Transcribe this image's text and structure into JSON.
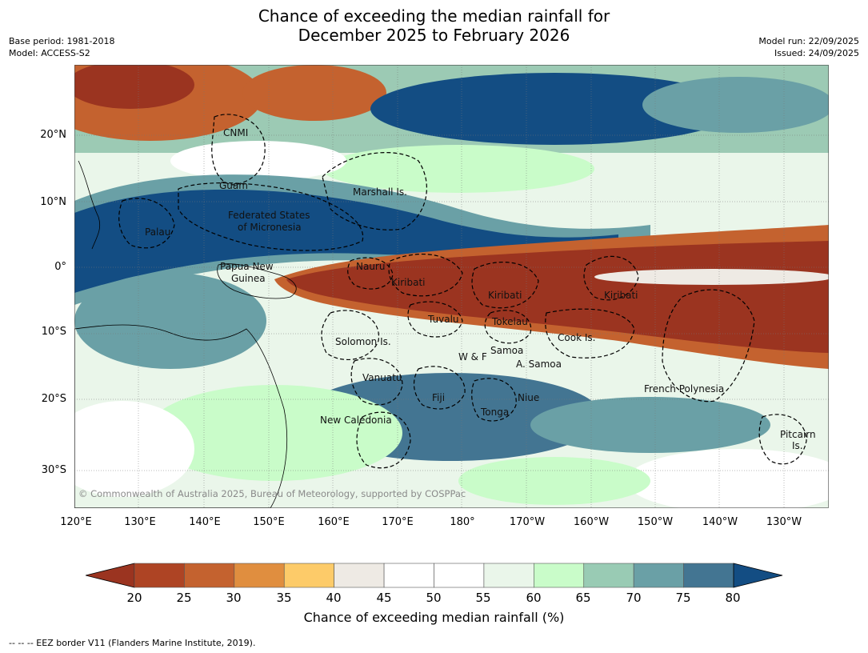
{
  "title_line1": "Chance of exceeding the median rainfall for",
  "title_line2": "December 2025 to February 2026",
  "meta_left": [
    "Base period: 1981-2018",
    "Model: ACCESS-S2"
  ],
  "meta_right": [
    "Model run: 22/09/2025",
    "Issued: 24/09/2025"
  ],
  "lat_labels": [
    "20°N",
    "10°N",
    "0°",
    "10°S",
    "20°S",
    "30°S"
  ],
  "lon_labels": [
    "120°E",
    "130°E",
    "140°E",
    "150°E",
    "160°E",
    "170°E",
    "180°",
    "170°W",
    "160°W",
    "150°W",
    "140°W",
    "130°W"
  ],
  "region_labels": [
    "CNMI",
    "Guam",
    "Marshall Is.",
    "Federated States",
    "of Micronesia",
    "Palau",
    "Papua New",
    "Guinea",
    "Nauru",
    "Kiribati",
    "Kiribati",
    "Kiribati",
    "Tuvalu",
    "Tokelau",
    "Cook Is.",
    "Solomon Is.",
    "W & F",
    "Samoa",
    "A. Samoa",
    "Vanuatu",
    "Fiji",
    "Niue",
    "French Polynesia",
    "Tonga",
    "New Caledonia",
    "Pitcairn",
    "Is."
  ],
  "copyright": "© Commonwealth of Australia 2025, Bureau of Meteorology, supported by COSPPac",
  "colorbar": {
    "ticks": [
      "20",
      "25",
      "30",
      "35",
      "40",
      "45",
      "50",
      "55",
      "60",
      "65",
      "70",
      "75",
      "80"
    ],
    "colors": [
      "#9b3420",
      "#ae4424",
      "#c4622f",
      "#e08e3f",
      "#fdcb69",
      "#eeeae4",
      "#ffffff",
      "#ffffff",
      "#eaf6ea",
      "#c9fcc9",
      "#99cbb4",
      "#6aa0a6",
      "#437592",
      "#134d83"
    ],
    "label": "Chance of exceeding median rainfall (%)"
  },
  "footnote": "-- -- -- EEZ border V11 (Flanders Marine Institute, 2019)."
}
